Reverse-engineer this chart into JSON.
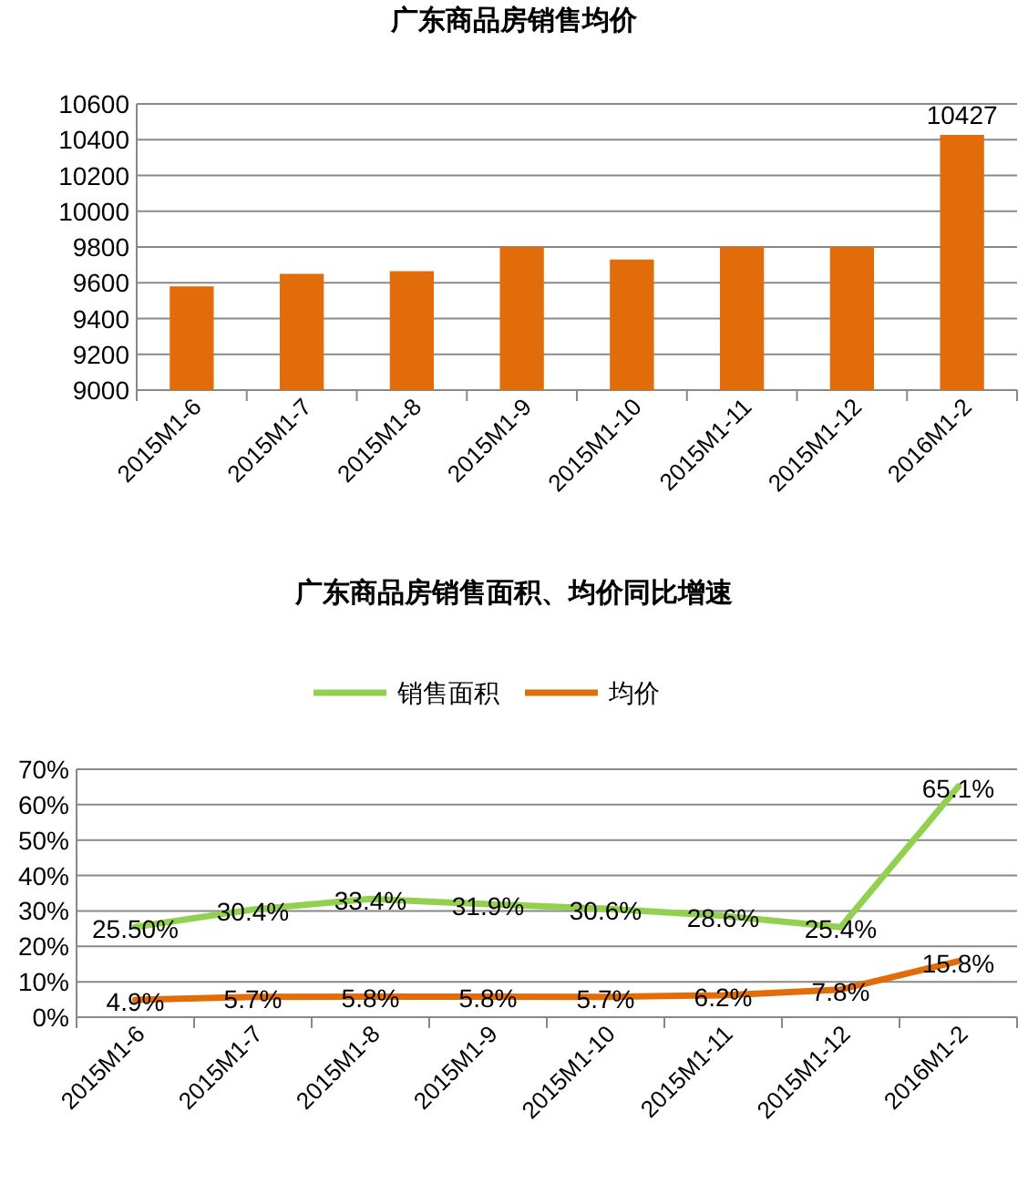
{
  "chart_data": [
    {
      "type": "bar",
      "title": "广东商品房销售均价",
      "categories": [
        "2015M1-6",
        "2015M1-7",
        "2015M1-8",
        "2015M1-9",
        "2015M1-10",
        "2015M1-11",
        "2015M1-12",
        "2016M1-2"
      ],
      "series": [
        {
          "color": "#e36c0a",
          "values": [
            9580,
            9650,
            9665,
            9800,
            9730,
            9800,
            9800,
            10427
          ],
          "value_labels": [
            null,
            null,
            null,
            null,
            null,
            null,
            null,
            "10427"
          ]
        }
      ],
      "ylim": [
        9000,
        10600
      ],
      "yticks": [
        9000,
        9200,
        9400,
        9600,
        9800,
        10000,
        10200,
        10400,
        10600
      ],
      "grid": "y",
      "legend": false
    },
    {
      "type": "line",
      "title": "广东商品房销售面积、均价同比增速",
      "categories": [
        "2015M1-6",
        "2015M1-7",
        "2015M1-8",
        "2015M1-9",
        "2015M1-10",
        "2015M1-11",
        "2015M1-12",
        "2016M1-2"
      ],
      "series": [
        {
          "name": "销售面积",
          "color": "#92d050",
          "values": [
            25.5,
            30.4,
            33.4,
            31.9,
            30.6,
            28.6,
            25.4,
            65.1
          ],
          "value_labels": [
            "25.50%",
            "30.4%",
            "33.4%",
            "31.9%",
            "30.6%",
            "28.6%",
            "25.4%",
            "65.1%"
          ]
        },
        {
          "name": "均价",
          "color": "#e36c0a",
          "values": [
            4.9,
            5.7,
            5.8,
            5.8,
            5.7,
            6.2,
            7.8,
            15.8
          ],
          "value_labels": [
            "4.9%",
            "5.7%",
            "5.8%",
            "5.8%",
            "5.7%",
            "6.2%",
            "7.8%",
            "15.8%"
          ]
        }
      ],
      "ylim": [
        0,
        70
      ],
      "yticks": [
        {
          "value": 0,
          "label": "0%"
        },
        {
          "value": 10,
          "label": "10%"
        },
        {
          "value": 20,
          "label": "20%"
        },
        {
          "value": 30,
          "label": "30%"
        },
        {
          "value": 40,
          "label": "40%"
        },
        {
          "value": 50,
          "label": "50%"
        },
        {
          "value": 60,
          "label": "60%"
        },
        {
          "value": 70,
          "label": "70%"
        }
      ],
      "grid": "y",
      "legend": "top",
      "marker": "none",
      "line_style": "solid"
    }
  ]
}
